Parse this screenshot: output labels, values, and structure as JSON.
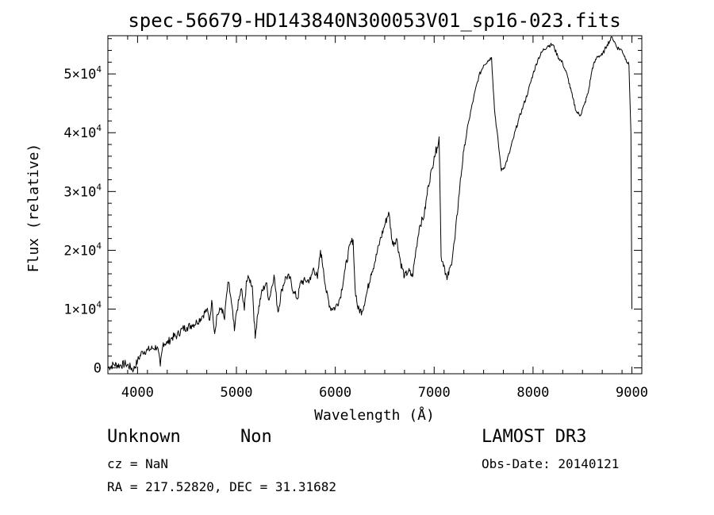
{
  "chart_data": {
    "type": "line",
    "title": "spec-56679-HD143840N300053V01_sp16-023.fits",
    "xlabel": "Wavelength (Å)",
    "ylabel": "Flux (relative)",
    "xlim": [
      3700,
      9100
    ],
    "ylim": [
      -1000,
      56500
    ],
    "x_ticks": [
      4000,
      5000,
      6000,
      7000,
      8000,
      9000
    ],
    "x_tick_labels": [
      "4000",
      "5000",
      "6000",
      "7000",
      "8000",
      "9000"
    ],
    "y_ticks": [
      0,
      10000,
      20000,
      30000,
      40000,
      50000
    ],
    "y_tick_labels": [
      {
        "mant": "0",
        "exp": ""
      },
      {
        "mant": "1×10",
        "exp": "4"
      },
      {
        "mant": "2×10",
        "exp": "4"
      },
      {
        "mant": "3×10",
        "exp": "4"
      },
      {
        "mant": "4×10",
        "exp": "4"
      },
      {
        "mant": "5×10",
        "exp": "4"
      }
    ],
    "series": [
      {
        "name": "flux",
        "points": [
          [
            3700,
            0
          ],
          [
            3760,
            600
          ],
          [
            3820,
            400
          ],
          [
            3880,
            700
          ],
          [
            3960,
            -300
          ],
          [
            4000,
            1200
          ],
          [
            4050,
            2800
          ],
          [
            4100,
            3000
          ],
          [
            4150,
            3300
          ],
          [
            4200,
            3600
          ],
          [
            4230,
            300
          ],
          [
            4260,
            4300
          ],
          [
            4300,
            4200
          ],
          [
            4350,
            5200
          ],
          [
            4400,
            5500
          ],
          [
            4450,
            6600
          ],
          [
            4500,
            6900
          ],
          [
            4550,
            7300
          ],
          [
            4600,
            7800
          ],
          [
            4650,
            8700
          ],
          [
            4700,
            9900
          ],
          [
            4730,
            8100
          ],
          [
            4750,
            11500
          ],
          [
            4780,
            5800
          ],
          [
            4800,
            8800
          ],
          [
            4850,
            10200
          ],
          [
            4880,
            8200
          ],
          [
            4900,
            12500
          ],
          [
            4920,
            14600
          ],
          [
            4950,
            11000
          ],
          [
            4980,
            6300
          ],
          [
            5000,
            9400
          ],
          [
            5050,
            13500
          ],
          [
            5080,
            9800
          ],
          [
            5100,
            14800
          ],
          [
            5130,
            15200
          ],
          [
            5160,
            14000
          ],
          [
            5190,
            5000
          ],
          [
            5210,
            8700
          ],
          [
            5250,
            12500
          ],
          [
            5300,
            14500
          ],
          [
            5330,
            11500
          ],
          [
            5380,
            15800
          ],
          [
            5420,
            9500
          ],
          [
            5460,
            13400
          ],
          [
            5500,
            15500
          ],
          [
            5540,
            15300
          ],
          [
            5580,
            12800
          ],
          [
            5620,
            11800
          ],
          [
            5650,
            14600
          ],
          [
            5700,
            14800
          ],
          [
            5750,
            15000
          ],
          [
            5780,
            17000
          ],
          [
            5820,
            15200
          ],
          [
            5850,
            20000
          ],
          [
            5880,
            16800
          ],
          [
            5910,
            12800
          ],
          [
            5950,
            10200
          ],
          [
            6000,
            10200
          ],
          [
            6050,
            12000
          ],
          [
            6100,
            16800
          ],
          [
            6150,
            21000
          ],
          [
            6180,
            21800
          ],
          [
            6200,
            13500
          ],
          [
            6230,
            10000
          ],
          [
            6270,
            9600
          ],
          [
            6320,
            12800
          ],
          [
            6360,
            16000
          ],
          [
            6400,
            18000
          ],
          [
            6450,
            21500
          ],
          [
            6500,
            24300
          ],
          [
            6540,
            26500
          ],
          [
            6580,
            21000
          ],
          [
            6620,
            22000
          ],
          [
            6660,
            18000
          ],
          [
            6700,
            15500
          ],
          [
            6740,
            16500
          ],
          [
            6780,
            15500
          ],
          [
            6820,
            20500
          ],
          [
            6850,
            24000
          ],
          [
            6900,
            26000
          ],
          [
            6940,
            31000
          ],
          [
            6980,
            34000
          ],
          [
            7000,
            36000
          ],
          [
            7030,
            37500
          ],
          [
            7050,
            39300
          ],
          [
            7070,
            19000
          ],
          [
            7100,
            17500
          ],
          [
            7130,
            15000
          ],
          [
            7170,
            17500
          ],
          [
            7210,
            22000
          ],
          [
            7260,
            31000
          ],
          [
            7300,
            37000
          ],
          [
            7350,
            42000
          ],
          [
            7400,
            46000
          ],
          [
            7450,
            49500
          ],
          [
            7500,
            51500
          ],
          [
            7540,
            52200
          ],
          [
            7580,
            52800
          ],
          [
            7610,
            44000
          ],
          [
            7650,
            38000
          ],
          [
            7680,
            33500
          ],
          [
            7720,
            34500
          ],
          [
            7760,
            36500
          ],
          [
            7800,
            39000
          ],
          [
            7850,
            42000
          ],
          [
            7900,
            44500
          ],
          [
            7950,
            47000
          ],
          [
            8000,
            50000
          ],
          [
            8050,
            52500
          ],
          [
            8100,
            54000
          ],
          [
            8150,
            54800
          ],
          [
            8200,
            55000
          ],
          [
            8250,
            53000
          ],
          [
            8300,
            51800
          ],
          [
            8350,
            49500
          ],
          [
            8400,
            46000
          ],
          [
            8440,
            43500
          ],
          [
            8480,
            43000
          ],
          [
            8520,
            44800
          ],
          [
            8560,
            47000
          ],
          [
            8600,
            51000
          ],
          [
            8650,
            53000
          ],
          [
            8700,
            53200
          ],
          [
            8750,
            55000
          ],
          [
            8800,
            56300
          ],
          [
            8850,
            54500
          ],
          [
            8900,
            54000
          ],
          [
            8940,
            52500
          ],
          [
            8970,
            51500
          ],
          [
            8990,
            40000
          ],
          [
            9000,
            10000
          ]
        ]
      }
    ]
  },
  "annotations": {
    "object_class": "Unknown",
    "object_subclass": "Non",
    "survey": "LAMOST DR3",
    "redshift": "cz = NaN",
    "obs_date": "Obs-Date: 20140121",
    "coordinates": "RA = 217.52820, DEC =  31.31682"
  }
}
